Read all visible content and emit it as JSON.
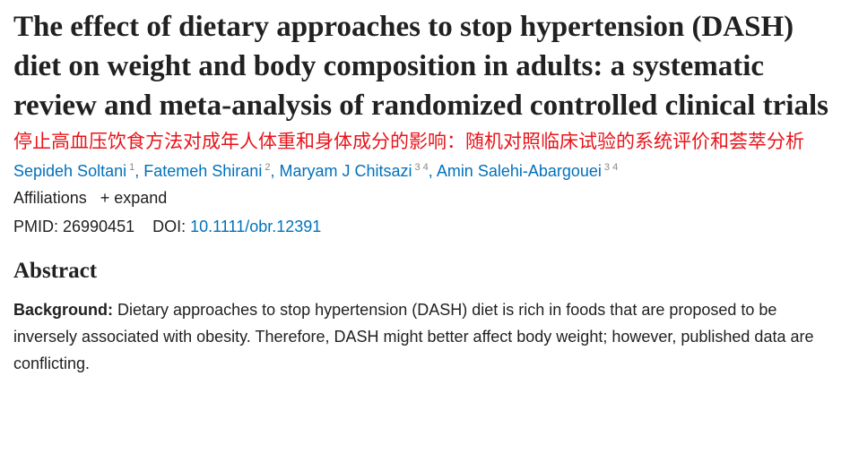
{
  "title": "The effect of dietary approaches to stop hypertension (DASH) diet on weight and body composition in adults: a systematic review and meta-analysis of randomized controlled clinical trials",
  "authors": [
    {
      "name": "Sepideh Soltani",
      "sup": "1"
    },
    {
      "name": "Fatemeh Shirani",
      "sup": "2"
    },
    {
      "name": "Maryam J Chitsazi",
      "sup": "3 4"
    },
    {
      "name": "Amin Salehi-Abargouei",
      "sup": "3 4"
    }
  ],
  "overlay_translation": "停止高血压饮食方法对成年人体重和身体成分的影响：随机对照临床试验的系统评价和荟萃分析",
  "affiliations_label": "Affiliations",
  "expand_label": "+ expand",
  "pmid": "PMID: 26990451",
  "doi_label": "DOI:",
  "doi": "10.1111/obr.12391",
  "abstract_heading": "Abstract",
  "background_label": "Background:",
  "background_text": "Dietary approaches to stop hypertension (DASH) diet is rich in foods that are proposed to be inversely associated with obesity. Therefore, DASH might better affect body weight; however, published data are conflicting."
}
